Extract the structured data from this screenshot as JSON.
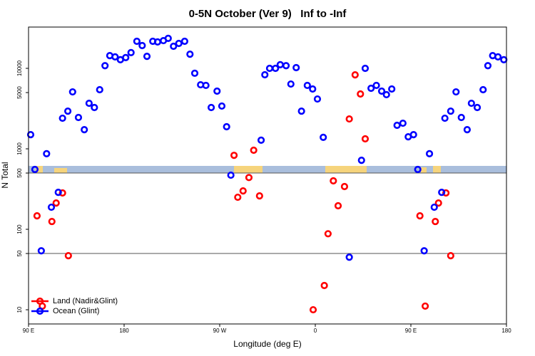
{
  "chart_data": {
    "type": "scatter",
    "title": "0-5N October (Ver 9)   Inf to -Inf",
    "xlabel": "Longitude (deg E)",
    "ylabel": "N Total",
    "xlim": [
      90,
      540
    ],
    "xticks": [
      {
        "value": 90,
        "label": "90 E"
      },
      180,
      {
        "value": 270,
        "label": "90 W"
      },
      {
        "value": 360,
        "label": "0"
      },
      {
        "value": 450,
        "label": "90 E"
      },
      {
        "value": 540,
        "label": "180"
      }
    ],
    "ylim": [
      6.66,
      32600
    ],
    "log_y": true,
    "yticks": [
      10,
      50,
      100,
      500,
      1000,
      5000,
      10000
    ],
    "hlines": [
      50,
      500
    ],
    "legend": "lower left",
    "series": [
      {
        "name": "Land (Nadir&Glint)",
        "color": "#ff0000",
        "x": [
          98,
          103,
          112,
          116,
          122,
          127.5,
          283.5,
          287,
          292,
          297.5,
          302,
          307.5,
          358,
          368.5,
          372,
          377,
          381.5,
          387.5,
          392,
          397.5,
          402.5,
          407,
          458.5,
          463.5,
          473,
          476,
          483,
          487.5
        ],
        "values": [
          147,
          11.1,
          125,
          212,
          283,
          47,
          830,
          250,
          300,
          440,
          960,
          260,
          10,
          20,
          88,
          400,
          196,
          340,
          2350,
          8300,
          4800,
          1330,
          147,
          11.1,
          125,
          212,
          283,
          47
        ]
      },
      {
        "name": "Ocean (Glint)",
        "color": "#0000ff",
        "x": [
          92,
          96,
          102,
          107,
          111.5,
          118,
          122,
          127,
          131.5,
          137,
          142.5,
          147,
          152,
          157,
          162,
          166.5,
          171.5,
          176.5,
          181.5,
          186.5,
          192,
          197,
          201.5,
          207,
          211.5,
          217,
          221.5,
          226.5,
          231.5,
          237,
          242,
          246.5,
          252,
          257,
          262,
          267.5,
          272,
          276.5,
          280.5,
          309,
          312.5,
          317,
          322.5,
          327,
          332.5,
          337,
          342,
          347,
          352.5,
          357.5,
          362,
          367.5,
          392,
          403.5,
          407,
          412.5,
          417.5,
          422.5,
          427,
          432,
          437,
          442.5,
          447.5,
          452.5,
          456.5,
          462.5,
          467.5,
          472,
          479,
          482,
          487.5,
          492.5,
          497.5,
          503,
          507,
          512.5,
          518,
          522.5,
          527,
          532,
          537.5
        ],
        "values": [
          1500,
          554,
          54,
          870,
          188,
          288,
          2400,
          2940,
          5100,
          2450,
          1730,
          3680,
          3260,
          5430,
          10800,
          14400,
          13900,
          12800,
          13600,
          15700,
          21700,
          19200,
          14100,
          21700,
          21300,
          22100,
          23600,
          18800,
          20400,
          21700,
          15000,
          8700,
          6250,
          6140,
          3260,
          5210,
          3400,
          1880,
          470,
          1280,
          8320,
          10000,
          10000,
          11100,
          10800,
          6380,
          10200,
          2940,
          6140,
          5540,
          4160,
          1390,
          45,
          720,
          10000,
          5650,
          6140,
          5210,
          4710,
          5540,
          1960,
          2080,
          1410,
          1500,
          554,
          54,
          870,
          188,
          288,
          2400,
          2940,
          5100,
          2450,
          1730,
          3680,
          3260,
          5430,
          10800,
          14400,
          13900,
          12800
        ]
      }
    ]
  }
}
